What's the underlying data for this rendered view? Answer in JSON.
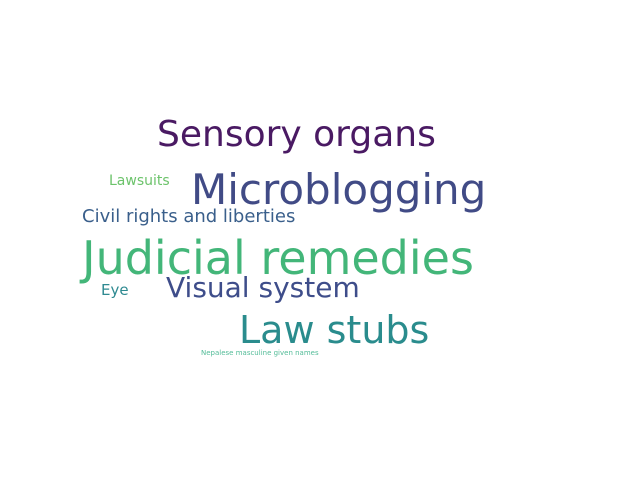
{
  "words": [
    {
      "text": "Sensory organs",
      "color": "#4a1a63"
    },
    {
      "text": "Lawsuits",
      "color": "#6cc36b"
    },
    {
      "text": "Microblogging",
      "color": "#414b86"
    },
    {
      "text": "Civil rights and liberties",
      "color": "#3a5f8b"
    },
    {
      "text": "Judicial remedies",
      "color": "#43b679"
    },
    {
      "text": "Eye",
      "color": "#2e8a91"
    },
    {
      "text": "Visual system",
      "color": "#3e4d8a"
    },
    {
      "text": "Law stubs",
      "color": "#2a8c8d"
    },
    {
      "text": "Nepalese masculine given names",
      "color": "#53bc98"
    }
  ]
}
